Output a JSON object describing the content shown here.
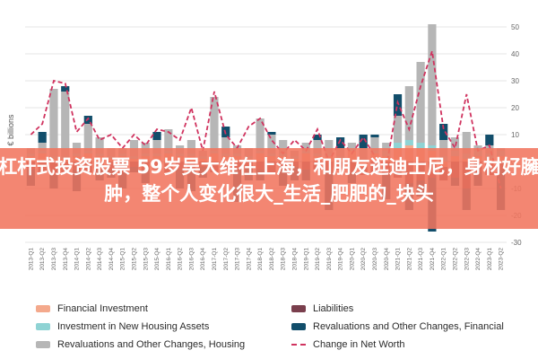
{
  "chart_data": {
    "type": "bar",
    "ylabel": "€ billions",
    "ylim": [
      -30,
      50
    ],
    "yticks": [
      50,
      40,
      30,
      20,
      10,
      0,
      -10,
      -20,
      -30
    ],
    "categories": [
      "2013-Q1",
      "2013-Q2",
      "2013-Q3",
      "2013-Q4",
      "2014-Q1",
      "2014-Q2",
      "2014-Q3",
      "2014-Q4",
      "2015-Q1",
      "2015-Q2",
      "2015-Q3",
      "2015-Q4",
      "2016-Q1",
      "2016-Q2",
      "2016-Q3",
      "2016-Q4",
      "2017-Q1",
      "2017-Q2",
      "2017-Q3",
      "2017-Q4",
      "2018-Q1",
      "2018-Q2",
      "2018-Q3",
      "2018-Q4",
      "2019-Q1",
      "2019-Q2",
      "2019-Q3",
      "2019-Q4",
      "2020-Q1",
      "2020-Q2",
      "2020-Q3",
      "2020-Q4",
      "2021-Q1",
      "2021-Q2",
      "2021-Q3",
      "2021-Q4",
      "2022-Q1",
      "2022-Q2",
      "2022-Q3",
      "2022-Q4",
      "2023-Q1",
      "2023-Q2"
    ],
    "series": [
      {
        "name": "Financial Investment",
        "color": "#f4a98c",
        "type": "stacked-bar",
        "values": [
          2,
          3,
          1,
          1,
          2,
          3,
          2,
          1,
          2,
          1,
          2,
          2,
          3,
          2,
          2,
          1,
          3,
          2,
          2,
          1,
          3,
          2,
          2,
          1,
          3,
          2,
          2,
          1,
          4,
          -2,
          3,
          2,
          5,
          6,
          5,
          4,
          -2,
          2,
          1,
          2,
          1,
          2
        ]
      },
      {
        "name": "Investment in New Housing Assets",
        "color": "#8fd3d4",
        "type": "stacked-bar",
        "values": [
          1,
          1,
          1,
          1,
          1,
          1,
          1,
          1,
          1,
          1,
          1,
          1,
          1,
          1,
          1,
          1,
          1,
          1,
          1,
          1,
          1,
          1,
          1,
          1,
          1,
          1,
          1,
          1,
          1,
          1,
          1,
          2,
          2,
          2,
          2,
          2,
          2,
          2,
          2,
          2,
          2,
          2
        ]
      },
      {
        "name": "Revaluations and Other Changes, Housing",
        "color": "#b6b6b6",
        "type": "stacked-bar",
        "values": [
          2,
          3,
          25,
          24,
          4,
          10,
          6,
          3,
          2,
          6,
          4,
          5,
          8,
          3,
          5,
          2,
          20,
          6,
          3,
          3,
          12,
          7,
          5,
          2,
          3,
          5,
          5,
          3,
          2,
          4,
          5,
          3,
          10,
          20,
          30,
          45,
          6,
          5,
          8,
          2,
          3,
          1
        ]
      },
      {
        "name": "Liabilities",
        "color": "#7a3f4d",
        "type": "stacked-bar",
        "values": [
          -3,
          -4,
          -5,
          -4,
          -3,
          -4,
          -3,
          -3,
          -4,
          -2,
          -3,
          -3,
          -4,
          -3,
          -3,
          -2,
          -4,
          -3,
          -3,
          -2,
          -3,
          -4,
          -3,
          -2,
          -3,
          -3,
          -4,
          -3,
          -4,
          -3,
          -4,
          -5,
          -6,
          -8,
          -7,
          -6,
          -5,
          -6,
          -10,
          -4,
          -5,
          -3
        ]
      },
      {
        "name": "Revaluations and Other Changes, Financial",
        "color": "#124e6b",
        "type": "stacked-bar",
        "values": [
          -6,
          4,
          -5,
          2,
          -8,
          3,
          -4,
          -3,
          -6,
          -2,
          -5,
          3,
          0,
          -7,
          -8,
          -4,
          0,
          4,
          -12,
          -5,
          -4,
          1,
          -6,
          -5,
          -4,
          2,
          -14,
          4,
          -4,
          5,
          1,
          -9,
          8,
          -10,
          -6,
          -20,
          6,
          -3,
          -8,
          -5,
          4,
          -15
        ]
      },
      {
        "name": "Change in Net Worth",
        "color": "#d0335f",
        "type": "line",
        "values": [
          10,
          14,
          30,
          29,
          11,
          16,
          8,
          10,
          5,
          10,
          6,
          12,
          11,
          8,
          20,
          4,
          26,
          10,
          5,
          13,
          16,
          8,
          3,
          8,
          4,
          12,
          0,
          8,
          3,
          9,
          2,
          -2,
          22,
          12,
          28,
          41,
          12,
          5,
          25,
          4,
          6,
          -10
        ]
      }
    ]
  },
  "legend": [
    {
      "label": "Financial Investment",
      "color": "#f4a98c",
      "kind": "bar"
    },
    {
      "label": "Liabilities",
      "color": "#7a3f4d",
      "kind": "bar"
    },
    {
      "label": "Investment in New Housing Assets",
      "color": "#8fd3d4",
      "kind": "bar"
    },
    {
      "label": "Revaluations and Other Changes, Financial",
      "color": "#124e6b",
      "kind": "bar"
    },
    {
      "label": "Revaluations and Other Changes, Housing",
      "color": "#b6b6b6",
      "kind": "bar"
    },
    {
      "label": "Change in Net Worth",
      "color": "#d0335f",
      "kind": "line"
    }
  ],
  "overlay": {
    "text": "杠杆式投资股票 59岁吴大维在上海，和朋友逛迪士尼，身材好臃肿，整个人变化很大_生活_肥肥的_块头"
  }
}
